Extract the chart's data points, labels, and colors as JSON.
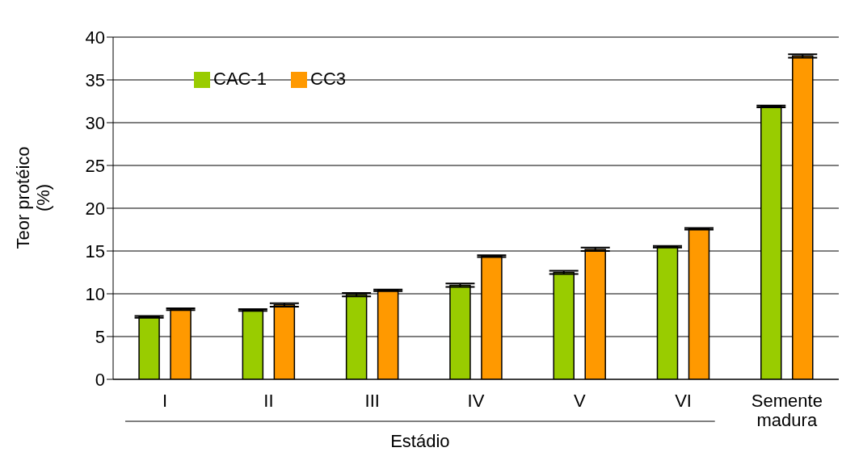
{
  "chart_data": {
    "type": "bar",
    "xlabel": "Estádio",
    "ylabel": "Teor protéico (%)",
    "categories": [
      "I",
      "II",
      "III",
      "IV",
      "V",
      "VI",
      "Semente madura"
    ],
    "series": [
      {
        "name": "CAC-1",
        "color": "#99cc00",
        "values": [
          7.3,
          8.1,
          9.9,
          11.0,
          12.5,
          15.5,
          31.9
        ],
        "errors": [
          0.1,
          0.1,
          0.2,
          0.2,
          0.2,
          0.1,
          0.1
        ]
      },
      {
        "name": "CC3",
        "color": "#ff9900",
        "values": [
          8.2,
          8.7,
          10.4,
          14.4,
          15.2,
          17.6,
          37.8
        ],
        "errors": [
          0.1,
          0.2,
          0.1,
          0.1,
          0.2,
          0.1,
          0.2
        ]
      }
    ],
    "ylim": [
      0,
      40
    ],
    "yticks": [
      0,
      5,
      10,
      15,
      20,
      25,
      30,
      35,
      40
    ],
    "grid": "y",
    "legend": "top left"
  }
}
